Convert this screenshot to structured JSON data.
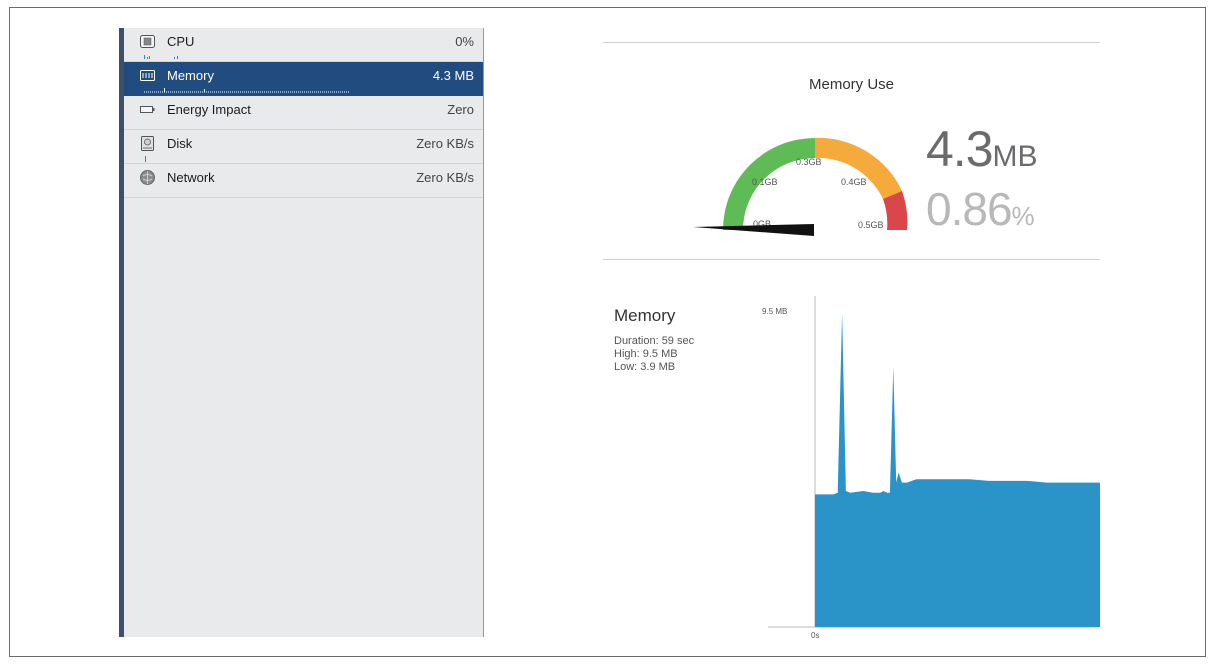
{
  "sidebar": {
    "items": [
      {
        "label": "CPU",
        "value": "0%",
        "icon": "cpu-icon"
      },
      {
        "label": "Memory",
        "value": "4.3 MB",
        "icon": "memory-icon",
        "selected": true
      },
      {
        "label": "Energy Impact",
        "value": "Zero",
        "icon": "battery-icon"
      },
      {
        "label": "Disk",
        "value": "Zero KB/s",
        "icon": "disk-icon"
      },
      {
        "label": "Network",
        "value": "Zero KB/s",
        "icon": "network-icon"
      }
    ],
    "selected_color": "#204c80"
  },
  "gauge": {
    "title": "Memory Use",
    "value": "4.3",
    "value_unit": "MB",
    "percent": "0.86",
    "percent_unit": "%",
    "ticks": [
      "0GB",
      "0.1GB",
      "0.3GB",
      "0.4GB",
      "0.5GB"
    ],
    "colors": {
      "green": "#5fbb55",
      "orange": "#f5aa3c",
      "red": "#d9474a"
    }
  },
  "memory_report": {
    "title": "Memory",
    "duration": "Duration: 59 sec",
    "high": "High: 9.5 MB",
    "low": "Low: 3.9 MB"
  },
  "chart_data": {
    "type": "area",
    "ylabel_top": "9.5 MB",
    "xlabel_start": "0s",
    "color": "#2a93c8",
    "ylim": [
      0,
      9.5
    ],
    "xlim": [
      0,
      59
    ],
    "x": [
      0,
      3.8,
      4.7,
      5.6,
      6.4,
      7.3,
      10,
      12,
      13.5,
      14.2,
      14.9,
      15.5,
      16.2,
      16.8,
      17.3,
      18,
      19,
      21,
      24,
      28,
      32,
      36,
      40,
      44,
      48,
      52,
      56,
      59
    ],
    "values": [
      3.95,
      3.95,
      4.0,
      9.35,
      4.05,
      4.0,
      4.05,
      4.0,
      4.0,
      4.05,
      4.0,
      4.0,
      7.75,
      4.3,
      4.6,
      4.3,
      4.3,
      4.4,
      4.4,
      4.4,
      4.4,
      4.35,
      4.35,
      4.35,
      4.3,
      4.3,
      4.3,
      4.3
    ]
  }
}
